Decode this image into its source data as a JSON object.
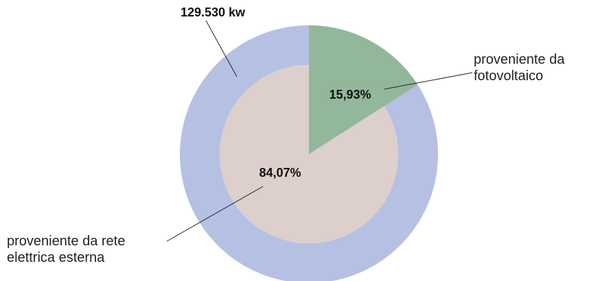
{
  "chart_data": {
    "type": "pie",
    "total": {
      "value": 129530,
      "label": "129.530 kw"
    },
    "categories": [
      "proveniente da fotovoltaico",
      "proveniente da rete elettrica esterna"
    ],
    "values": [
      15.93,
      84.07
    ],
    "value_labels": [
      "15,93%",
      "84,07%"
    ],
    "colors": [
      "#93b79a",
      "#dccfcc"
    ],
    "ring_color": "#b6c0e2"
  }
}
